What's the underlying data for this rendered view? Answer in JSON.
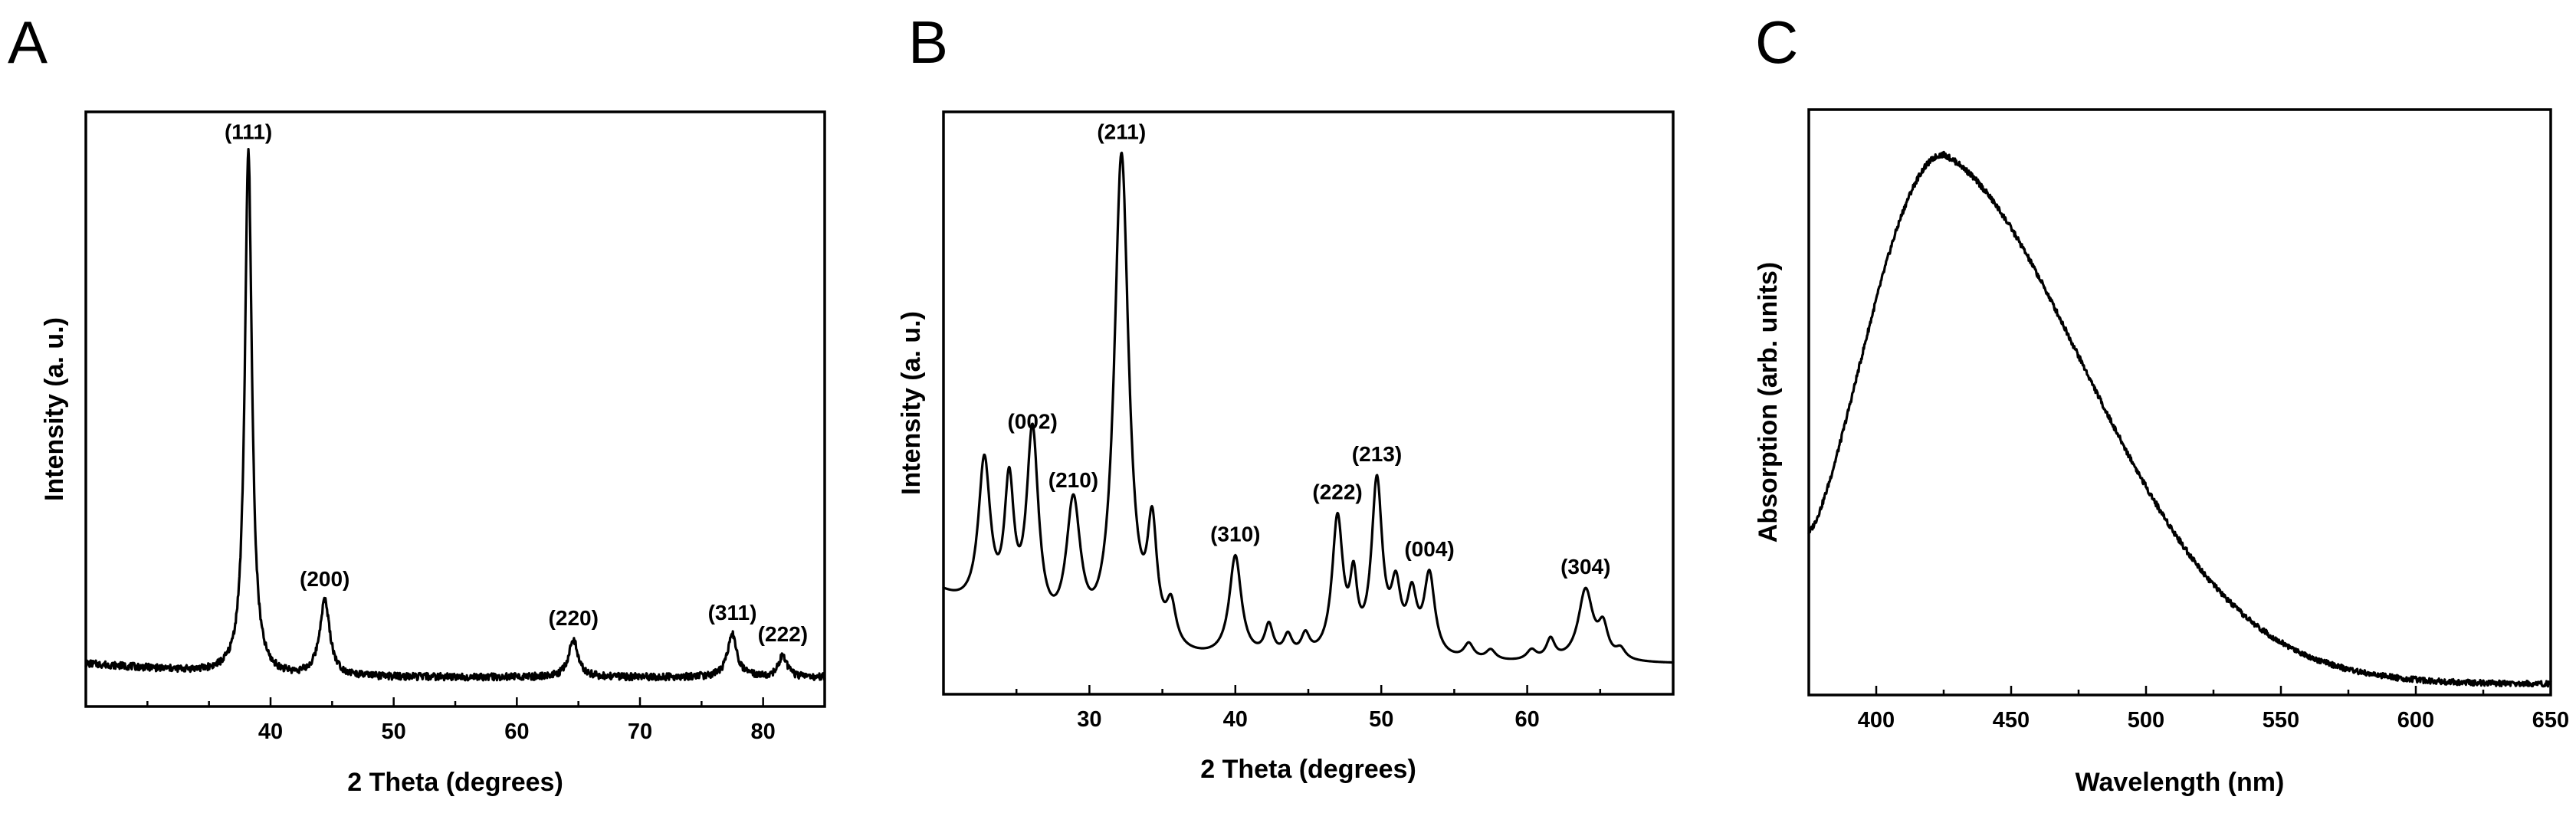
{
  "chart_data": [
    {
      "type": "line",
      "panel": "A",
      "xlabel": "2 Theta (degrees)",
      "ylabel": "Intensity (a. u.)",
      "xlim": [
        25,
        85
      ],
      "ylim": [
        0,
        100
      ],
      "x_ticks": [
        40,
        50,
        60,
        70,
        80
      ],
      "peaks": [
        {
          "x": 38.2,
          "height": 97,
          "width": 0.35,
          "label": "(111)"
        },
        {
          "x": 44.4,
          "height": 14,
          "width": 0.5,
          "label": "(200)"
        },
        {
          "x": 64.6,
          "height": 7,
          "width": 0.45,
          "label": "(220)"
        },
        {
          "x": 77.5,
          "height": 8,
          "width": 0.45,
          "label": "(311)"
        },
        {
          "x": 81.6,
          "height": 4,
          "width": 0.4,
          "label": "(222)"
        }
      ],
      "baseline": 3
    },
    {
      "type": "line",
      "panel": "B",
      "xlabel": "2 Theta (degrees)",
      "ylabel": "Intensity (a. u.)",
      "xlim": [
        20,
        70
      ],
      "ylim": [
        0,
        100
      ],
      "x_ticks": [
        30,
        40,
        50,
        60
      ],
      "peaks": [
        {
          "x": 26.1,
          "height": 39,
          "width": 0.5,
          "label": "(002)"
        },
        {
          "x": 28.9,
          "height": 27,
          "width": 0.6,
          "label": "(210)"
        },
        {
          "x": 32.2,
          "height": 98,
          "width": 0.6,
          "label": "(211)"
        },
        {
          "x": 40.0,
          "height": 20,
          "width": 0.5,
          "label": "(310)"
        },
        {
          "x": 47.0,
          "height": 27,
          "width": 0.45,
          "label": "(222)"
        },
        {
          "x": 49.7,
          "height": 34,
          "width": 0.45,
          "label": "(213)"
        },
        {
          "x": 53.3,
          "height": 16,
          "width": 0.45,
          "label": "(004)"
        },
        {
          "x": 64.0,
          "height": 14,
          "width": 0.6,
          "label": "(304)"
        }
      ],
      "minor_peaks": [
        {
          "x": 22.8,
          "height": 30,
          "width": 0.5
        },
        {
          "x": 24.5,
          "height": 26,
          "width": 0.4
        },
        {
          "x": 34.3,
          "height": 22,
          "width": 0.4
        },
        {
          "x": 35.6,
          "height": 8,
          "width": 0.4
        },
        {
          "x": 42.3,
          "height": 6,
          "width": 0.35
        },
        {
          "x": 43.6,
          "height": 4,
          "width": 0.35
        },
        {
          "x": 44.8,
          "height": 4,
          "width": 0.35
        },
        {
          "x": 48.1,
          "height": 13,
          "width": 0.3
        },
        {
          "x": 51.0,
          "height": 12,
          "width": 0.4
        },
        {
          "x": 52.1,
          "height": 11,
          "width": 0.4
        },
        {
          "x": 56.0,
          "height": 3,
          "width": 0.4
        },
        {
          "x": 57.5,
          "height": 2,
          "width": 0.4
        },
        {
          "x": 60.3,
          "height": 2,
          "width": 0.4
        },
        {
          "x": 61.6,
          "height": 4,
          "width": 0.35
        },
        {
          "x": 65.2,
          "height": 6,
          "width": 0.4
        },
        {
          "x": 66.4,
          "height": 2,
          "width": 0.4
        }
      ],
      "baseline": 2,
      "start_level": 26
    },
    {
      "type": "line",
      "panel": "C",
      "xlabel": "Wavelength (nm)",
      "ylabel": "Absorption (arb. units)",
      "xlim": [
        375,
        650
      ],
      "ylim": [
        0,
        100
      ],
      "x_ticks": [
        400,
        450,
        500,
        550,
        600,
        650
      ],
      "peak_wavelength": 425,
      "peak_value": 95,
      "start_value": 28,
      "end_value": 1
    }
  ]
}
